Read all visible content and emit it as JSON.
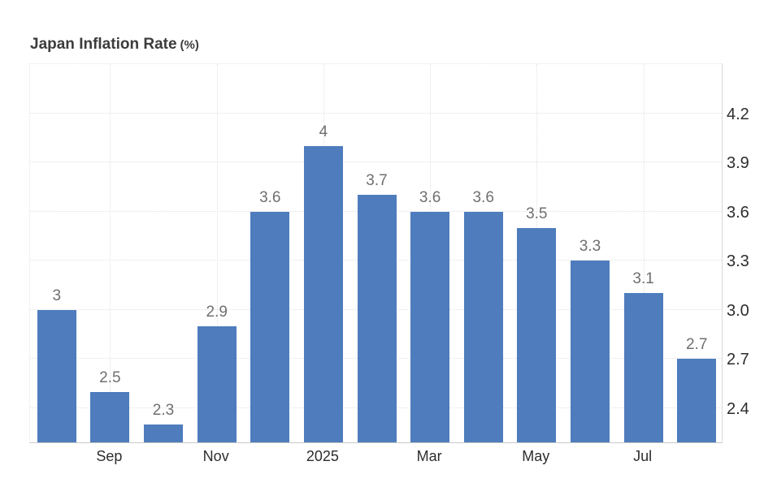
{
  "title": {
    "text": "Japan Inflation Rate",
    "unit": "(%)"
  },
  "colors": {
    "background": "#ffffff",
    "bar": "#4e7cbd",
    "grid": "#e2e2e2",
    "axis_line": "#c9c9c9",
    "axis_label": "#2d2d2d",
    "data_label": "#6f6f6f",
    "title": "#3c3c3c"
  },
  "chart_data": {
    "type": "bar",
    "title": "Japan Inflation Rate",
    "ylabel_unit": "(%)",
    "values": [
      3,
      2.5,
      2.3,
      2.9,
      3.6,
      4,
      3.7,
      3.6,
      3.6,
      3.5,
      3.3,
      3.1,
      2.7
    ],
    "bar_labels": [
      "3",
      "2.5",
      "2.3",
      "2.9",
      "3.6",
      "4",
      "3.7",
      "3.6",
      "3.6",
      "3.5",
      "3.3",
      "3.1",
      "2.7"
    ],
    "x_ticks": [
      {
        "index": 1,
        "label": "Sep"
      },
      {
        "index": 3,
        "label": "Nov"
      },
      {
        "index": 5,
        "label": "2025"
      },
      {
        "index": 7,
        "label": "Mar"
      },
      {
        "index": 9,
        "label": "May"
      },
      {
        "index": 11,
        "label": "Jul"
      }
    ],
    "y_ticks": [
      2.4,
      2.7,
      3.0,
      3.3,
      3.6,
      3.9,
      4.2
    ],
    "y_tick_labels": [
      "2.4",
      "2.7",
      "3.0",
      "3.3",
      "3.6",
      "3.9",
      "4.2"
    ],
    "ylim": [
      2.19,
      4.51
    ],
    "grid": "dotted",
    "legend": "none",
    "y_axis_side": "right"
  }
}
